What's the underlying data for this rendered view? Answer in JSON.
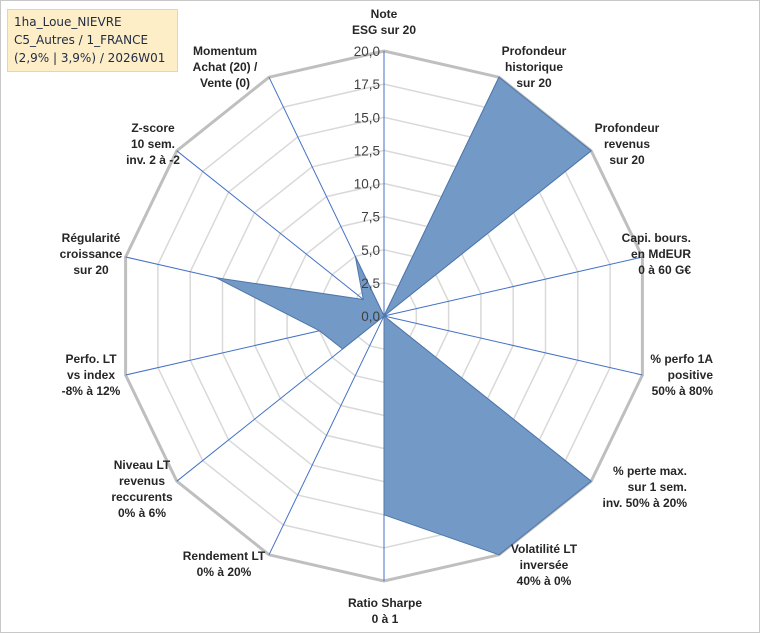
{
  "info": {
    "line1": "1ha_Loue_NIEVRE",
    "line2": "C5_Autres / 1_FRANCE",
    "line3": "(2,9% | 3,9%) / 2026W01"
  },
  "chart_data": {
    "type": "radar",
    "range": [
      0,
      20
    ],
    "ticks": [
      "0,0",
      "2,5",
      "5,0",
      "7,5",
      "10,0",
      "12,5",
      "15,0",
      "17,5",
      "20,0"
    ],
    "tick_values": [
      0,
      2.5,
      5,
      7.5,
      10,
      12.5,
      15,
      17.5,
      20
    ],
    "axes": [
      [
        "Note",
        "ESG sur 20"
      ],
      [
        "Profondeur",
        "historique",
        "sur 20"
      ],
      [
        "Profondeur",
        "revenus",
        "sur 20"
      ],
      [
        "Capi. bours.",
        "en MdEUR",
        "0 à 60 G€"
      ],
      [
        "% perfo 1A",
        "positive",
        "50% à 80%"
      ],
      [
        "% perte max.",
        "sur 1 sem.",
        "inv. 50% à 20%"
      ],
      [
        "Volatilité LT",
        "inversée",
        "40% à 0%"
      ],
      [
        "Ratio Sharpe",
        "0 à 1"
      ],
      [
        "Rendement LT",
        "0% à 20%"
      ],
      [
        "Niveau LT",
        "revenus",
        "reccurents",
        "0% à 6%"
      ],
      [
        "Perfo. LT",
        "vs index",
        "-8% à 12%"
      ],
      [
        "Régularité",
        "croissance",
        "sur 20"
      ],
      [
        "Z-score",
        "10 sem.",
        "inv. 2 à -2"
      ],
      [
        "Momentum",
        "Achat (20) /",
        "Vente (0)"
      ]
    ],
    "values": [
      0,
      20,
      20,
      0,
      0,
      20,
      20,
      15,
      0,
      4,
      5,
      13,
      2,
      5
    ],
    "grid": true,
    "colors": {
      "fill": "#7399c6",
      "stroke": "#4f77a8",
      "axis": "#4472c4",
      "ring": "#d9d9d9",
      "outer": "#bfbfbf"
    }
  }
}
